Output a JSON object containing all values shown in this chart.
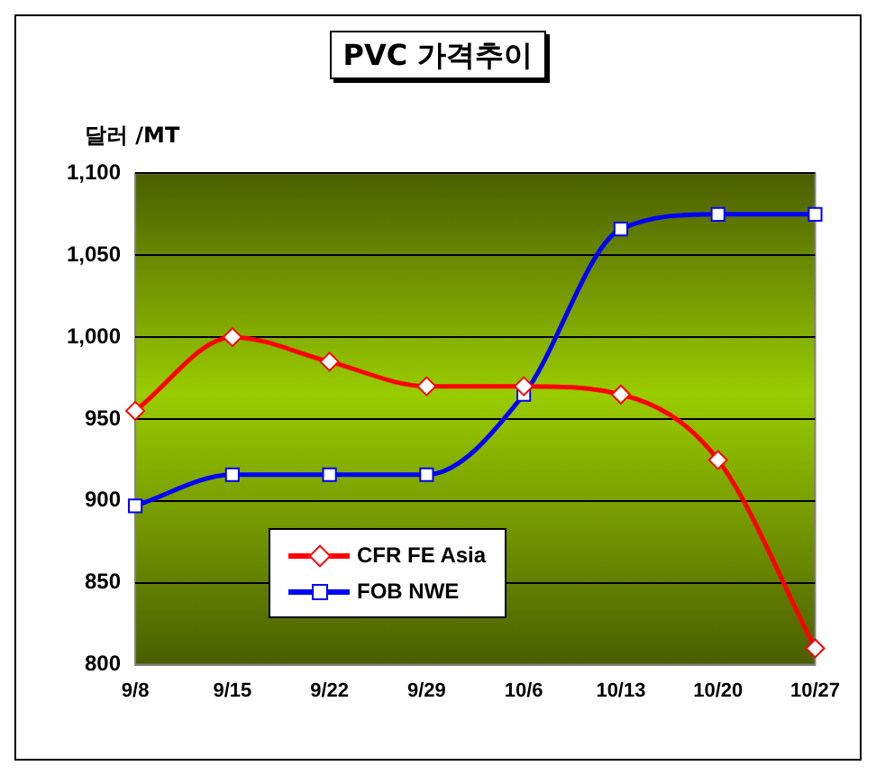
{
  "chart_data": {
    "type": "line",
    "title": "PVC 가격추이",
    "ylabel": "달러 /MT",
    "categories": [
      "9/8",
      "9/15",
      "9/22",
      "9/29",
      "10/6",
      "10/13",
      "10/20",
      "10/27"
    ],
    "series": [
      {
        "name": "CFR FE Asia",
        "color": "#ff0000",
        "marker": "diamond",
        "values": [
          955,
          1000,
          985,
          970,
          970,
          965,
          925,
          810
        ]
      },
      {
        "name": "FOB NWE",
        "color": "#0000ff",
        "marker": "square",
        "values": [
          897,
          916,
          916,
          916,
          965,
          1066,
          1075,
          1075
        ]
      }
    ],
    "ylim": [
      800,
      1100
    ],
    "yticks": [
      {
        "value": 800,
        "label": "800"
      },
      {
        "value": 850,
        "label": "850"
      },
      {
        "value": 900,
        "label": "900"
      },
      {
        "value": 950,
        "label": "950"
      },
      {
        "value": 1000,
        "label": "1,000"
      },
      {
        "value": 1050,
        "label": "1,050"
      },
      {
        "value": 1100,
        "label": "1,100"
      }
    ],
    "grid": "y",
    "legend": "bottom left",
    "line_style": "solid"
  }
}
